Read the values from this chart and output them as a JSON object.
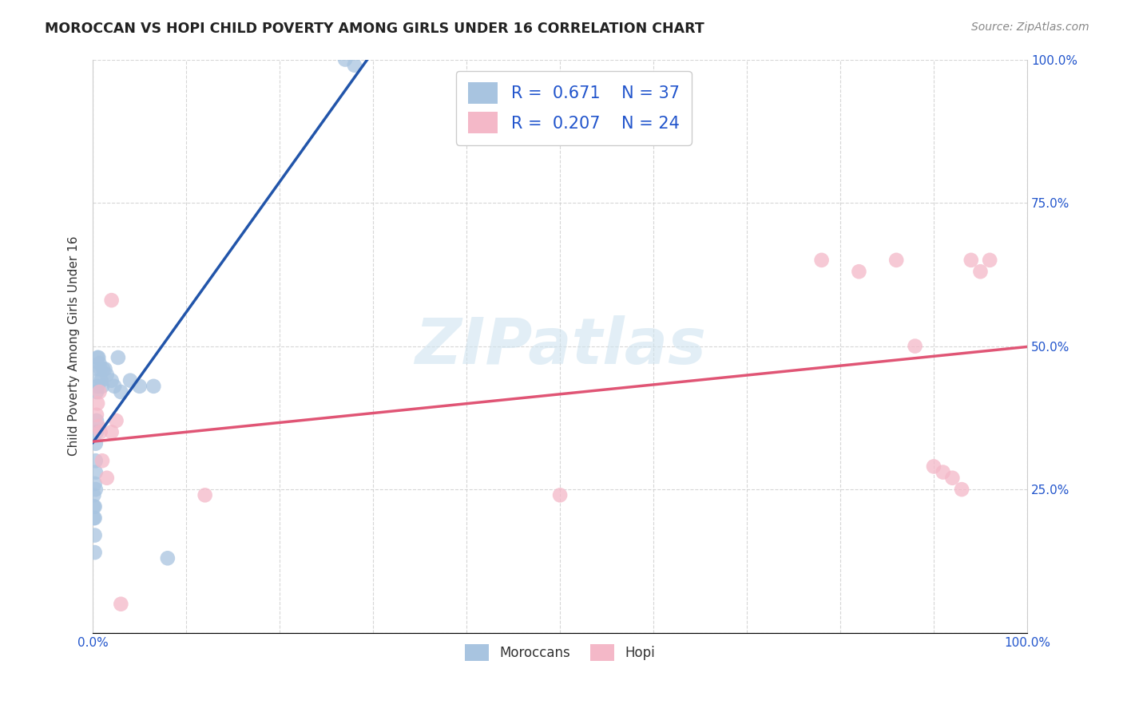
{
  "title": "MOROCCAN VS HOPI CHILD POVERTY AMONG GIRLS UNDER 16 CORRELATION CHART",
  "source": "Source: ZipAtlas.com",
  "ylabel": "Child Poverty Among Girls Under 16",
  "xlim": [
    0.0,
    1.0
  ],
  "ylim": [
    0.0,
    1.0
  ],
  "xticks": [
    0.0,
    0.1,
    0.2,
    0.3,
    0.4,
    0.5,
    0.6,
    0.7,
    0.8,
    0.9,
    1.0
  ],
  "yticks": [
    0.0,
    0.25,
    0.5,
    0.75,
    1.0
  ],
  "xticklabels": [
    "0.0%",
    "",
    "",
    "",
    "",
    "",
    "",
    "",
    "",
    "",
    "100.0%"
  ],
  "yticklabels_right": [
    "",
    "25.0%",
    "50.0%",
    "75.0%",
    "100.0%"
  ],
  "background_color": "#ffffff",
  "grid_color": "#cccccc",
  "watermark": "ZIPatlas",
  "moroccan_color": "#a8c4e0",
  "hopi_color": "#f4b8c8",
  "moroccan_line_color": "#2255aa",
  "hopi_line_color": "#e05575",
  "moroccan_R": 0.671,
  "moroccan_N": 37,
  "hopi_R": 0.207,
  "hopi_N": 24,
  "legend_label_moroccan": "Moroccans",
  "legend_label_hopi": "Hopi",
  "label_color_blue": "#2255cc",
  "moroccan_x": [
    0.001,
    0.001,
    0.001,
    0.002,
    0.002,
    0.002,
    0.002,
    0.002,
    0.003,
    0.003,
    0.003,
    0.003,
    0.004,
    0.004,
    0.004,
    0.005,
    0.005,
    0.005,
    0.006,
    0.006,
    0.007,
    0.008,
    0.009,
    0.01,
    0.011,
    0.013,
    0.015,
    0.02,
    0.023,
    0.027,
    0.03,
    0.04,
    0.05,
    0.065,
    0.08,
    0.27,
    0.28
  ],
  "moroccan_y": [
    0.2,
    0.22,
    0.24,
    0.14,
    0.17,
    0.2,
    0.22,
    0.26,
    0.25,
    0.28,
    0.3,
    0.33,
    0.35,
    0.37,
    0.42,
    0.43,
    0.46,
    0.48,
    0.44,
    0.48,
    0.47,
    0.46,
    0.44,
    0.43,
    0.46,
    0.46,
    0.45,
    0.44,
    0.43,
    0.48,
    0.42,
    0.44,
    0.43,
    0.43,
    0.13,
    1.0,
    0.99
  ],
  "hopi_x": [
    0.004,
    0.005,
    0.006,
    0.007,
    0.008,
    0.01,
    0.015,
    0.02,
    0.025,
    0.12,
    0.5,
    0.78,
    0.82,
    0.86,
    0.88,
    0.9,
    0.91,
    0.92,
    0.93,
    0.94,
    0.95,
    0.96,
    0.02,
    0.03
  ],
  "hopi_y": [
    0.38,
    0.4,
    0.36,
    0.42,
    0.35,
    0.3,
    0.27,
    0.35,
    0.37,
    0.24,
    0.24,
    0.65,
    0.63,
    0.65,
    0.5,
    0.29,
    0.28,
    0.27,
    0.25,
    0.65,
    0.63,
    0.65,
    0.58,
    0.05
  ],
  "moroccan_line": [
    0.0,
    0.38,
    0.0,
    0.15
  ],
  "hopi_line": [
    0.0,
    1.0,
    0.42,
    0.5
  ]
}
